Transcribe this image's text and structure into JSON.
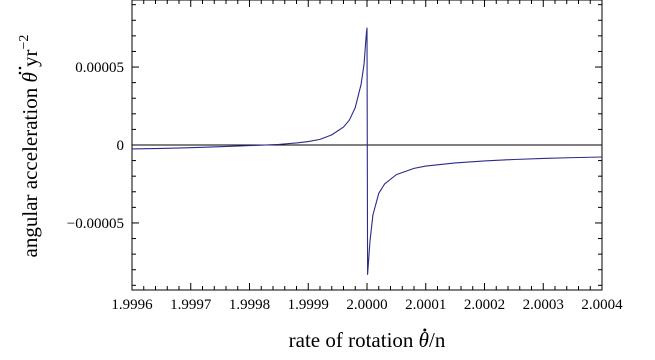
{
  "chart_data": {
    "type": "line",
    "title": "",
    "xlabel_text": "rate of rotation ",
    "xlabel_symbol": "θ",
    "xlabel_tail": "/n",
    "ylabel_text": "angular acceleration ",
    "ylabel_symbol": "θ",
    "ylabel_unit": "yr",
    "ylabel_exp": "−2",
    "xlim": [
      1.9996,
      2.0004
    ],
    "ylim": [
      -9.3e-05,
      9.3e-05
    ],
    "x_tick_labels": [
      "1.9996",
      "1.9997",
      "1.9998",
      "1.9999",
      "2.0000",
      "2.0001",
      "2.0002",
      "2.0003",
      "2.0004"
    ],
    "x_ticks": [
      1.9996,
      1.9997,
      1.9998,
      1.9999,
      2.0,
      2.0001,
      2.0002,
      2.0003,
      2.0004
    ],
    "y_tick_labels": [
      "0.00005",
      "0",
      "−0.00005"
    ],
    "y_ticks": [
      5e-05,
      0,
      -5e-05
    ],
    "zero_line": true,
    "grid": false,
    "series_color": "#2b2b8c",
    "series": [
      {
        "x": [
          1.9996,
          1.99965,
          1.9997,
          1.99975,
          1.9998,
          1.99982,
          1.99985,
          1.99988,
          1.9999,
          1.99992,
          1.99994,
          1.99996,
          1.99997,
          1.99998,
          1.99999,
          1.999995,
          1.999999,
          2.0,
          2.000001,
          2.000005,
          2.00001,
          2.00002,
          2.00003,
          2.00005,
          2.00008,
          2.0001,
          2.00015,
          2.0002,
          2.00025,
          2.0003,
          2.00035,
          2.0004
        ],
        "y": [
          -2.5e-06,
          -2.2e-06,
          -1.7e-06,
          -1.1e-06,
          -4e-07,
          -1e-07,
          4e-07,
          1.3e-06,
          2.2e-06,
          3.6e-06,
          6.5e-06,
          1.15e-05,
          1.6e-05,
          2.4e-05,
          3.9e-05,
          5.2e-05,
          7.2e-05,
          7.5e-05,
          -8.3e-05,
          -6.2e-05,
          -4.5e-05,
          -3.1e-05,
          -2.5e-05,
          -1.9e-05,
          -1.5e-05,
          -1.35e-05,
          -1.15e-05,
          -1.02e-05,
          -9.3e-06,
          -8.6e-06,
          -8.1e-06,
          -7.7e-06
        ]
      }
    ]
  }
}
